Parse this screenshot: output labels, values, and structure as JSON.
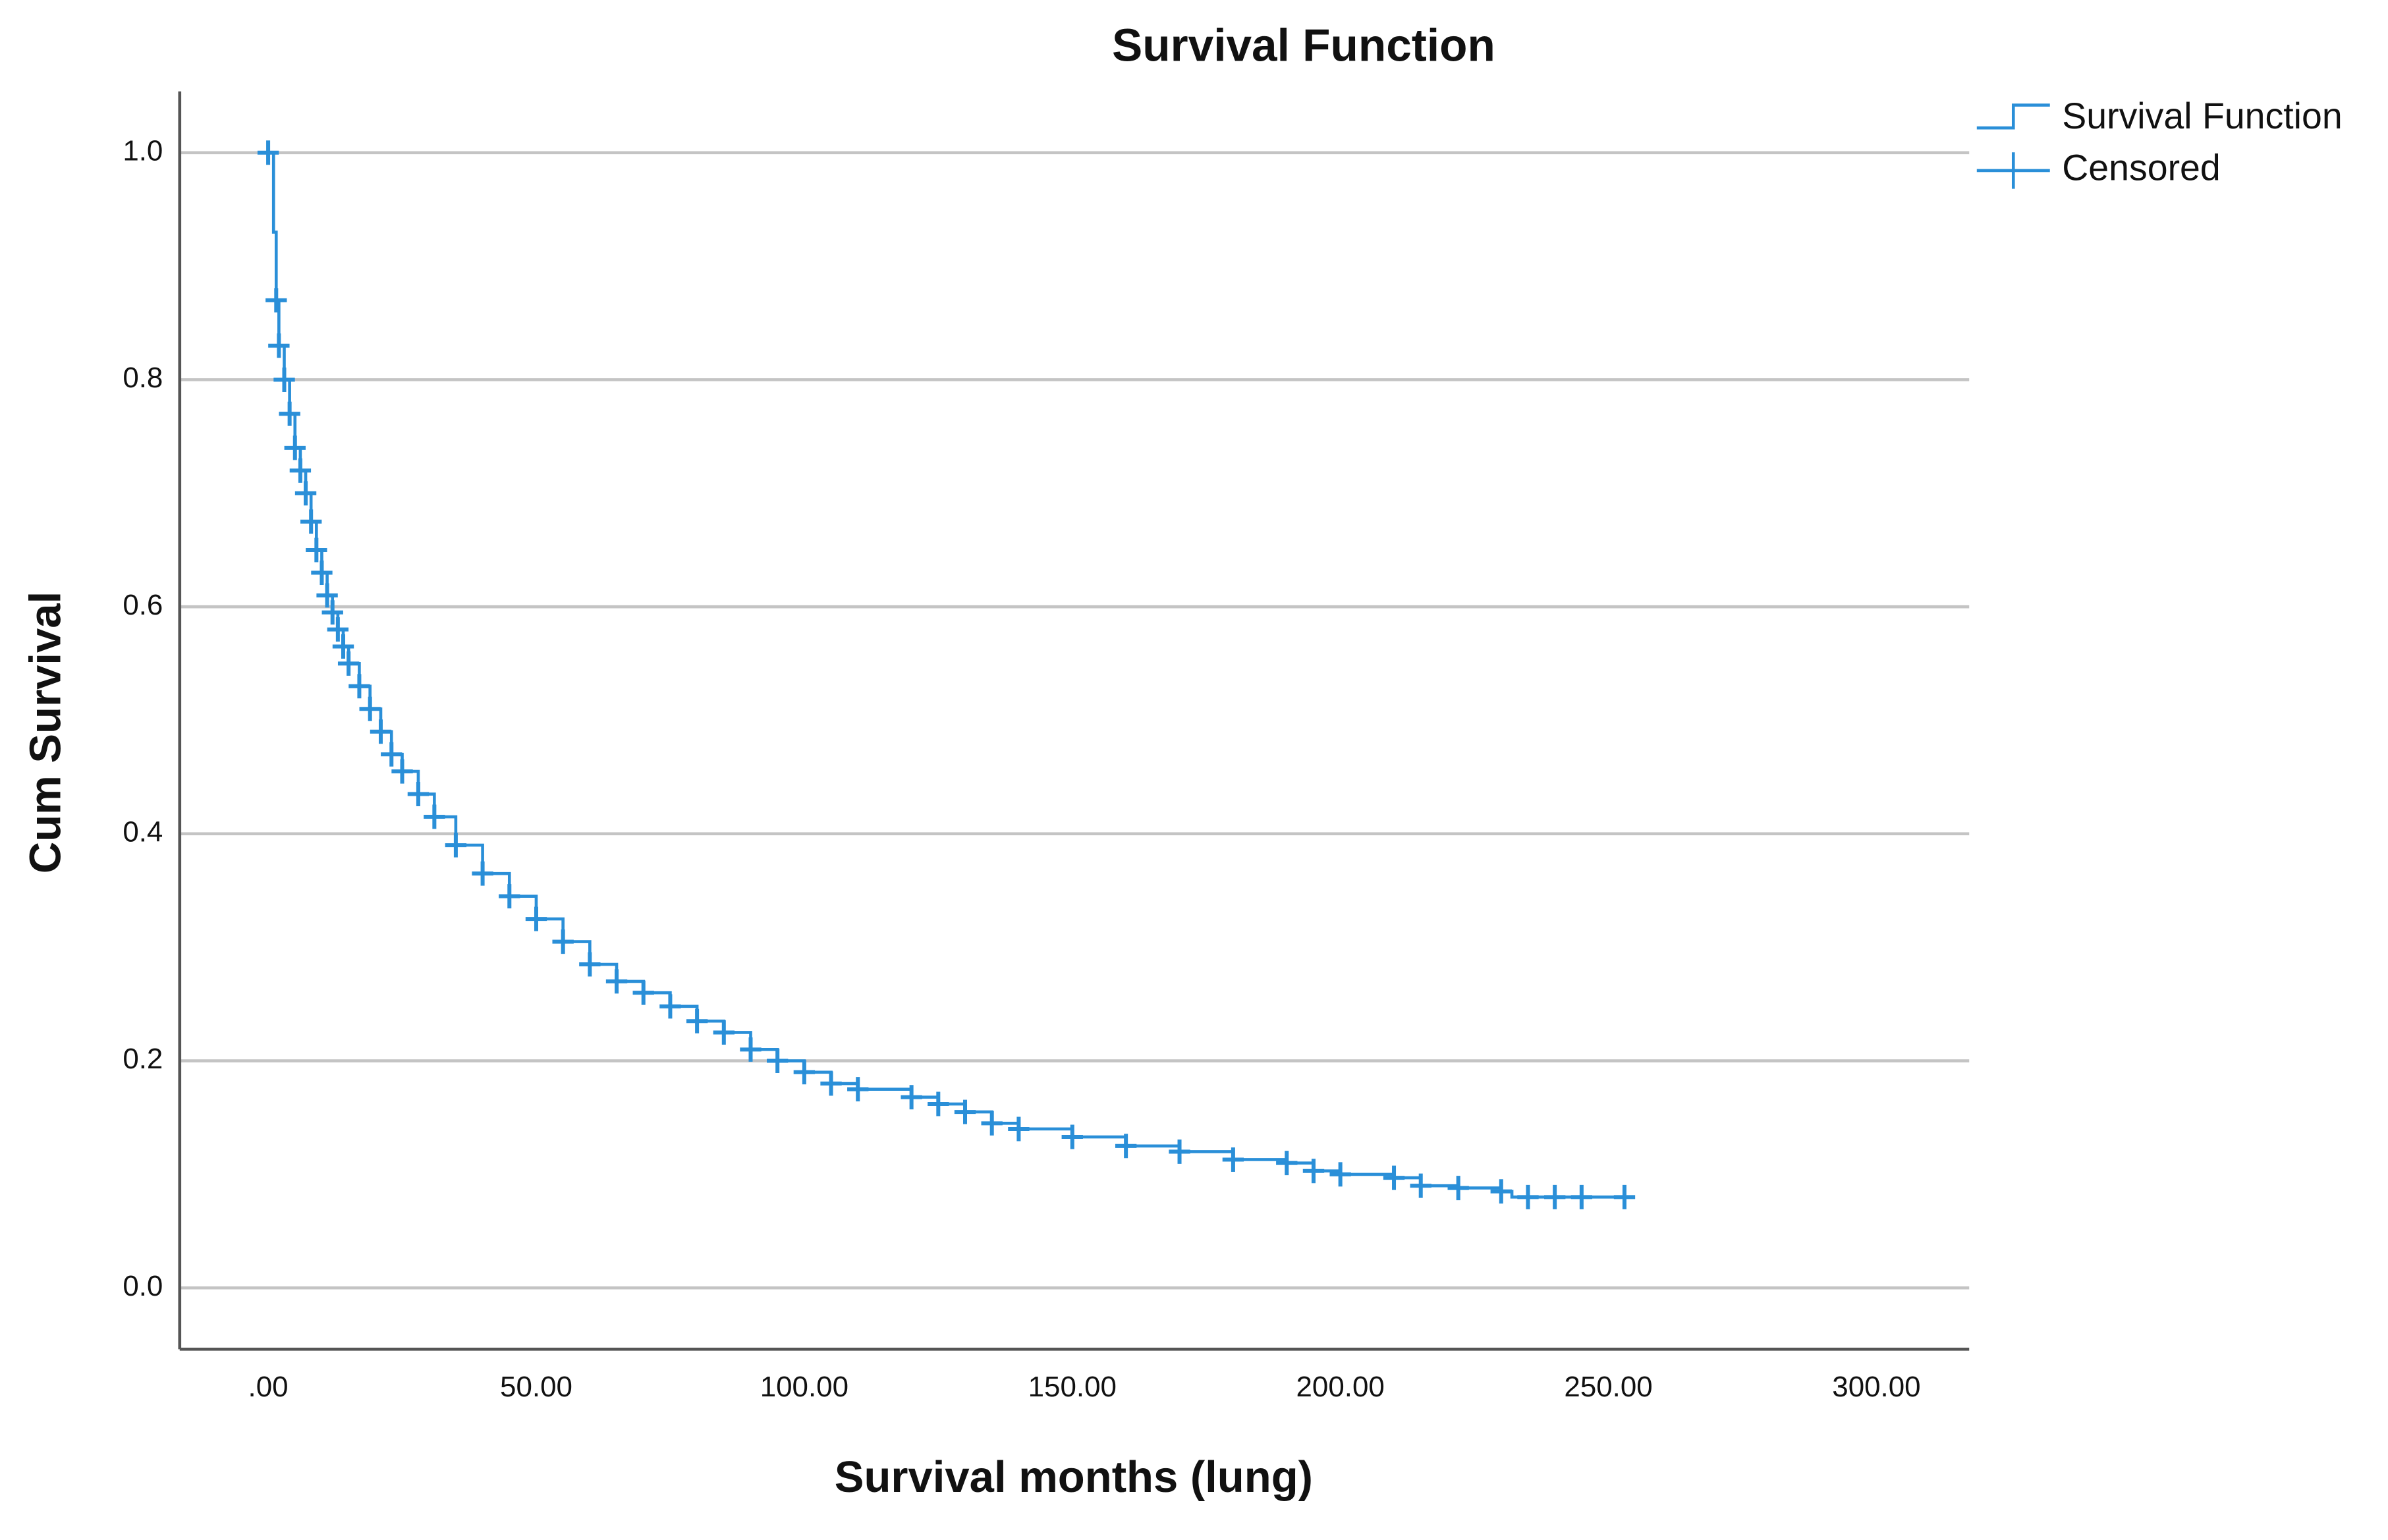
{
  "chart_data": {
    "type": "survival",
    "title": "Survival Function",
    "x_label": "Survival months (lung)",
    "y_label": "Cum Survival",
    "xlim": [
      -16.5,
      317.3
    ],
    "ylim": [
      -0.054,
      1.054
    ],
    "xticks": [
      {
        "value": 0,
        "label": ".00"
      },
      {
        "value": 50,
        "label": "50.00"
      },
      {
        "value": 100,
        "label": "100.00"
      },
      {
        "value": 150,
        "label": "150.00"
      },
      {
        "value": 200,
        "label": "200.00"
      },
      {
        "value": 250,
        "label": "250.00"
      },
      {
        "value": 300,
        "label": "300.00"
      }
    ],
    "yticks": [
      {
        "value": 0,
        "label": "0.0"
      },
      0.2,
      0.4,
      0.6,
      0.8,
      {
        "value": 1,
        "label": "1.0"
      }
    ],
    "grid": true,
    "legend": "top-right",
    "series": [
      {
        "name": "Survival Function",
        "color": "#2a8fd8",
        "style": "step",
        "x": [
          0,
          0.5,
          1,
          1.5,
          2,
          3,
          4,
          5,
          6,
          7,
          8,
          9,
          10,
          11,
          12,
          13,
          14,
          15,
          17,
          19,
          21,
          23,
          25,
          28,
          31,
          35,
          40,
          45,
          50,
          55,
          60,
          65,
          70,
          75,
          80,
          85,
          90,
          95,
          100,
          105,
          110,
          120,
          125,
          130,
          135,
          140,
          150,
          160,
          170,
          180,
          190,
          195,
          200,
          210,
          215,
          222,
          230,
          232,
          253
        ],
        "values": [
          1.0,
          1.0,
          0.93,
          0.87,
          0.83,
          0.8,
          0.77,
          0.74,
          0.72,
          0.7,
          0.675,
          0.65,
          0.63,
          0.61,
          0.595,
          0.58,
          0.565,
          0.55,
          0.53,
          0.51,
          0.49,
          0.47,
          0.455,
          0.435,
          0.415,
          0.39,
          0.365,
          0.345,
          0.325,
          0.305,
          0.285,
          0.27,
          0.26,
          0.248,
          0.235,
          0.225,
          0.21,
          0.2,
          0.19,
          0.18,
          0.175,
          0.168,
          0.162,
          0.155,
          0.145,
          0.14,
          0.133,
          0.125,
          0.12,
          0.113,
          0.11,
          0.103,
          0.1,
          0.097,
          0.09,
          0.088,
          0.085,
          0.08,
          0.08
        ]
      },
      {
        "name": "Censored",
        "color": "#2a8fd8",
        "style": "censor",
        "x": [
          0,
          1.5,
          2,
          3,
          4,
          5,
          6,
          7,
          8,
          9,
          10,
          11,
          12,
          13,
          14,
          15,
          17,
          19,
          21,
          23,
          25,
          28,
          31,
          35,
          40,
          45,
          50,
          55,
          60,
          65,
          70,
          75,
          80,
          85,
          90,
          95,
          100,
          105,
          110,
          120,
          125,
          130,
          135,
          140,
          150,
          160,
          170,
          180,
          190,
          195,
          200,
          210,
          215,
          222,
          230,
          235,
          240,
          245,
          253
        ],
        "values": [
          1.0,
          0.87,
          0.83,
          0.8,
          0.77,
          0.74,
          0.72,
          0.7,
          0.675,
          0.65,
          0.63,
          0.61,
          0.595,
          0.58,
          0.565,
          0.55,
          0.53,
          0.51,
          0.49,
          0.47,
          0.455,
          0.435,
          0.415,
          0.39,
          0.365,
          0.345,
          0.325,
          0.305,
          0.285,
          0.27,
          0.26,
          0.248,
          0.235,
          0.225,
          0.21,
          0.2,
          0.19,
          0.18,
          0.175,
          0.168,
          0.162,
          0.155,
          0.145,
          0.14,
          0.133,
          0.125,
          0.12,
          0.113,
          0.11,
          0.103,
          0.1,
          0.097,
          0.09,
          0.088,
          0.085,
          0.08,
          0.08,
          0.08,
          0.08
        ]
      }
    ]
  }
}
